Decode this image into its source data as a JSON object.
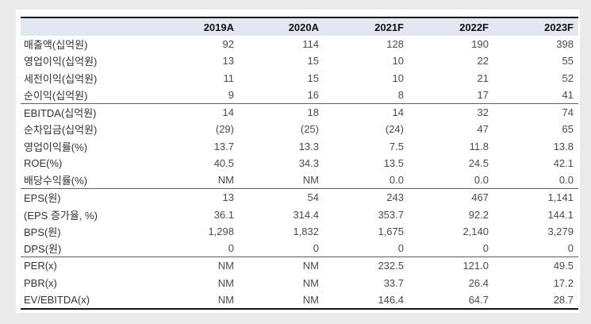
{
  "colors": {
    "page_bg": "#ebebeb",
    "panel_bg": "#ffffff",
    "header_bg": "#e3e7f2",
    "border_strong": "#161616",
    "border_group": "#5f5f5f",
    "text_label": "#333333",
    "text_value": "#4b4b4b",
    "text_header": "#111111"
  },
  "table": {
    "columns": [
      "",
      "2019A",
      "2020A",
      "2021F",
      "2022F",
      "2023F"
    ],
    "groups": [
      {
        "rows": [
          {
            "label": "매출액(십억원)",
            "values": [
              "92",
              "114",
              "128",
              "190",
              "398"
            ]
          },
          {
            "label": "영업이익(십억원)",
            "values": [
              "13",
              "15",
              "10",
              "22",
              "55"
            ]
          },
          {
            "label": "세전이익(십억원)",
            "values": [
              "11",
              "15",
              "10",
              "21",
              "52"
            ]
          },
          {
            "label": "순이익(십억원)",
            "values": [
              "9",
              "16",
              "8",
              "17",
              "41"
            ]
          }
        ]
      },
      {
        "rows": [
          {
            "label": "EBITDA(십억원)",
            "values": [
              "14",
              "18",
              "14",
              "32",
              "74"
            ]
          },
          {
            "label": "순차입금(십억원)",
            "values": [
              "(29)",
              "(25)",
              "(24)",
              "47",
              "65"
            ]
          },
          {
            "label": "영업이익률(%)",
            "values": [
              "13.7",
              "13.3",
              "7.5",
              "11.8",
              "13.8"
            ]
          },
          {
            "label": "ROE(%)",
            "values": [
              "40.5",
              "34.3",
              "13.5",
              "24.5",
              "42.1"
            ]
          },
          {
            "label": "배당수익률(%)",
            "values": [
              "NM",
              "NM",
              "0.0",
              "0.0",
              "0.0"
            ]
          }
        ]
      },
      {
        "rows": [
          {
            "label": "EPS(원)",
            "values": [
              "13",
              "54",
              "243",
              "467",
              "1,141"
            ]
          },
          {
            "label": "(EPS 증가율, %)",
            "values": [
              "36.1",
              "314.4",
              "353.7",
              "92.2",
              "144.1"
            ]
          },
          {
            "label": "BPS(원)",
            "values": [
              "1,298",
              "1,832",
              "1,675",
              "2,140",
              "3,279"
            ]
          },
          {
            "label": "DPS(원)",
            "values": [
              "0",
              "0",
              "0",
              "0",
              "0"
            ]
          }
        ]
      },
      {
        "rows": [
          {
            "label": "PER(x)",
            "values": [
              "NM",
              "NM",
              "232.5",
              "121.0",
              "49.5"
            ]
          },
          {
            "label": "PBR(x)",
            "values": [
              "NM",
              "NM",
              "33.7",
              "26.4",
              "17.2"
            ]
          },
          {
            "label": "EV/EBITDA(x)",
            "values": [
              "NM",
              "NM",
              "146.4",
              "64.7",
              "28.7"
            ]
          }
        ]
      }
    ]
  }
}
